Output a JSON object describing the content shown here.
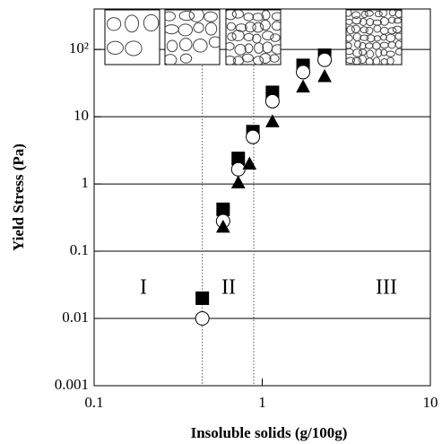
{
  "chart_data": {
    "type": "scatter",
    "xlabel": "Insoluble solids (g/100g)",
    "ylabel": "Yield Stress (Pa)",
    "xscale": "log",
    "yscale": "log",
    "xlim": [
      0.1,
      10
    ],
    "ylim": [
      0.001,
      400
    ],
    "xticks": [
      0.1,
      1,
      10
    ],
    "yticks": [
      0.001,
      0.01,
      0.1,
      1,
      10,
      {
        "value": 100,
        "label": "10²"
      }
    ],
    "grid": true,
    "vlines": [
      0.44,
      0.89
    ],
    "annotations": [
      "I",
      "II",
      "III"
    ],
    "series": [
      {
        "marker": "square",
        "color": "#000000",
        "x": [
          0.44,
          0.585,
          0.72,
          0.88,
          1.15,
          1.75,
          2.35
        ],
        "values": [
          0.02,
          0.42,
          2.4,
          6,
          23,
          58,
          82
        ]
      },
      {
        "marker": "circle",
        "color": "#ffffff",
        "x": [
          0.44,
          0.585,
          0.72,
          0.88,
          1.15,
          1.75,
          2.35
        ],
        "values": [
          0.01,
          0.28,
          1.65,
          5,
          17,
          46,
          70
        ]
      },
      {
        "marker": "triangle",
        "color": "#000000",
        "x": [
          0.585,
          0.72,
          0.84,
          1.15,
          1.75,
          2.35
        ],
        "values": [
          0.23,
          1.05,
          2.0,
          8.5,
          28,
          40
        ]
      }
    ]
  }
}
